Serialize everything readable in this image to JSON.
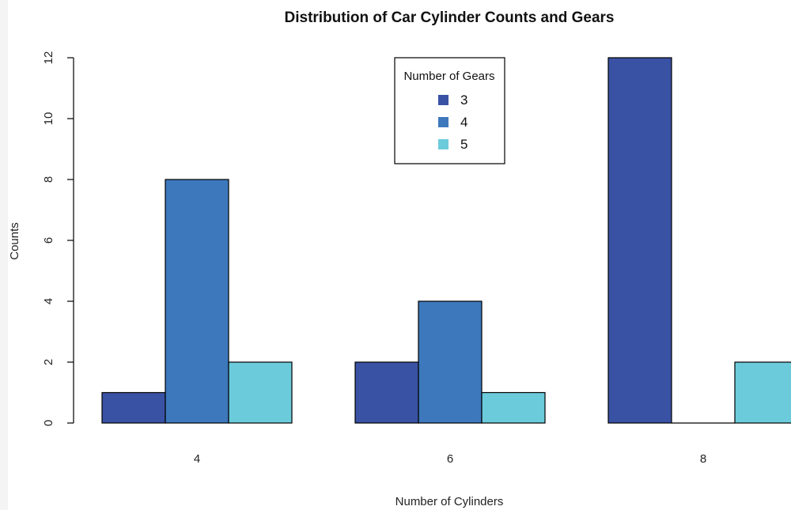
{
  "chart_data": {
    "type": "bar",
    "layout": "grouped",
    "title": "Distribution of Car Cylinder Counts and Gears",
    "xlabel": "Number of Cylinders",
    "ylabel": "Counts",
    "categories": [
      "4",
      "6",
      "8"
    ],
    "ylim": [
      0,
      12
    ],
    "yticks": [
      "0",
      "2",
      "4",
      "6",
      "8",
      "10",
      "12"
    ],
    "legend": {
      "title": "Number of Gears",
      "position": "top-center"
    },
    "series": [
      {
        "name": "3",
        "values": [
          1,
          2,
          12
        ],
        "color": "#3a52a3"
      },
      {
        "name": "4",
        "values": [
          8,
          4,
          0
        ],
        "color": "#3d78bc"
      },
      {
        "name": "5",
        "values": [
          2,
          1,
          2
        ],
        "color": "#6ccbdb"
      }
    ],
    "grid": false
  }
}
